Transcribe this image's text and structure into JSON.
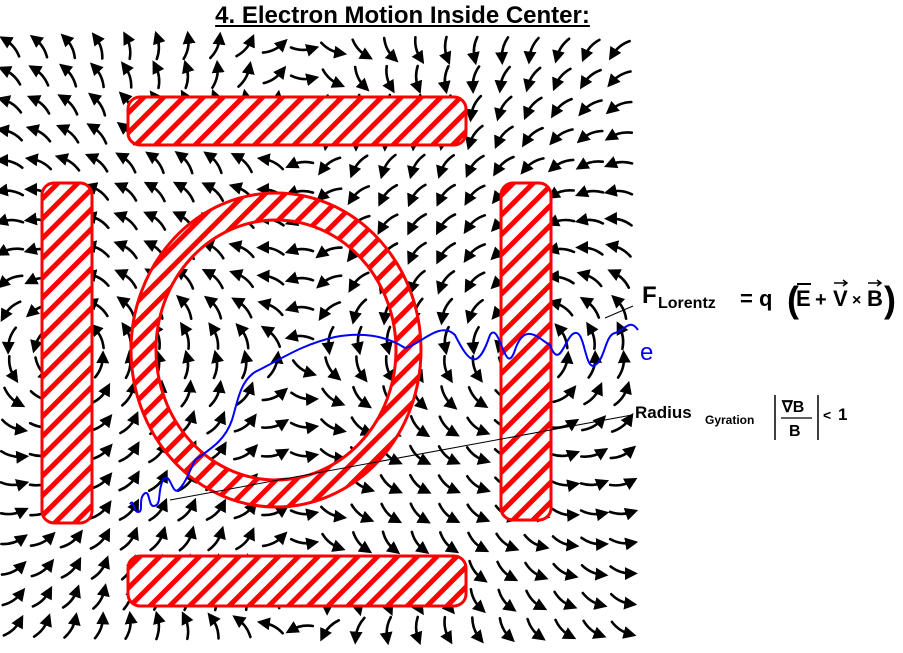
{
  "title": "4.  Electron Motion Inside Center:",
  "lorentz": {
    "F": "F",
    "sub": "Lorentz",
    "eq": "= q",
    "E": "E",
    "plus": "+",
    "V": "V",
    "times": "×",
    "B": "B"
  },
  "electron_label": "e",
  "radius": {
    "word": "Radius",
    "sub": "Gyration",
    "num": "∇B",
    "den": "B",
    "lt": "<",
    "one": "1"
  },
  "colors": {
    "coil": "#ff0000",
    "field": "#000000",
    "electron": "#0000ff"
  }
}
